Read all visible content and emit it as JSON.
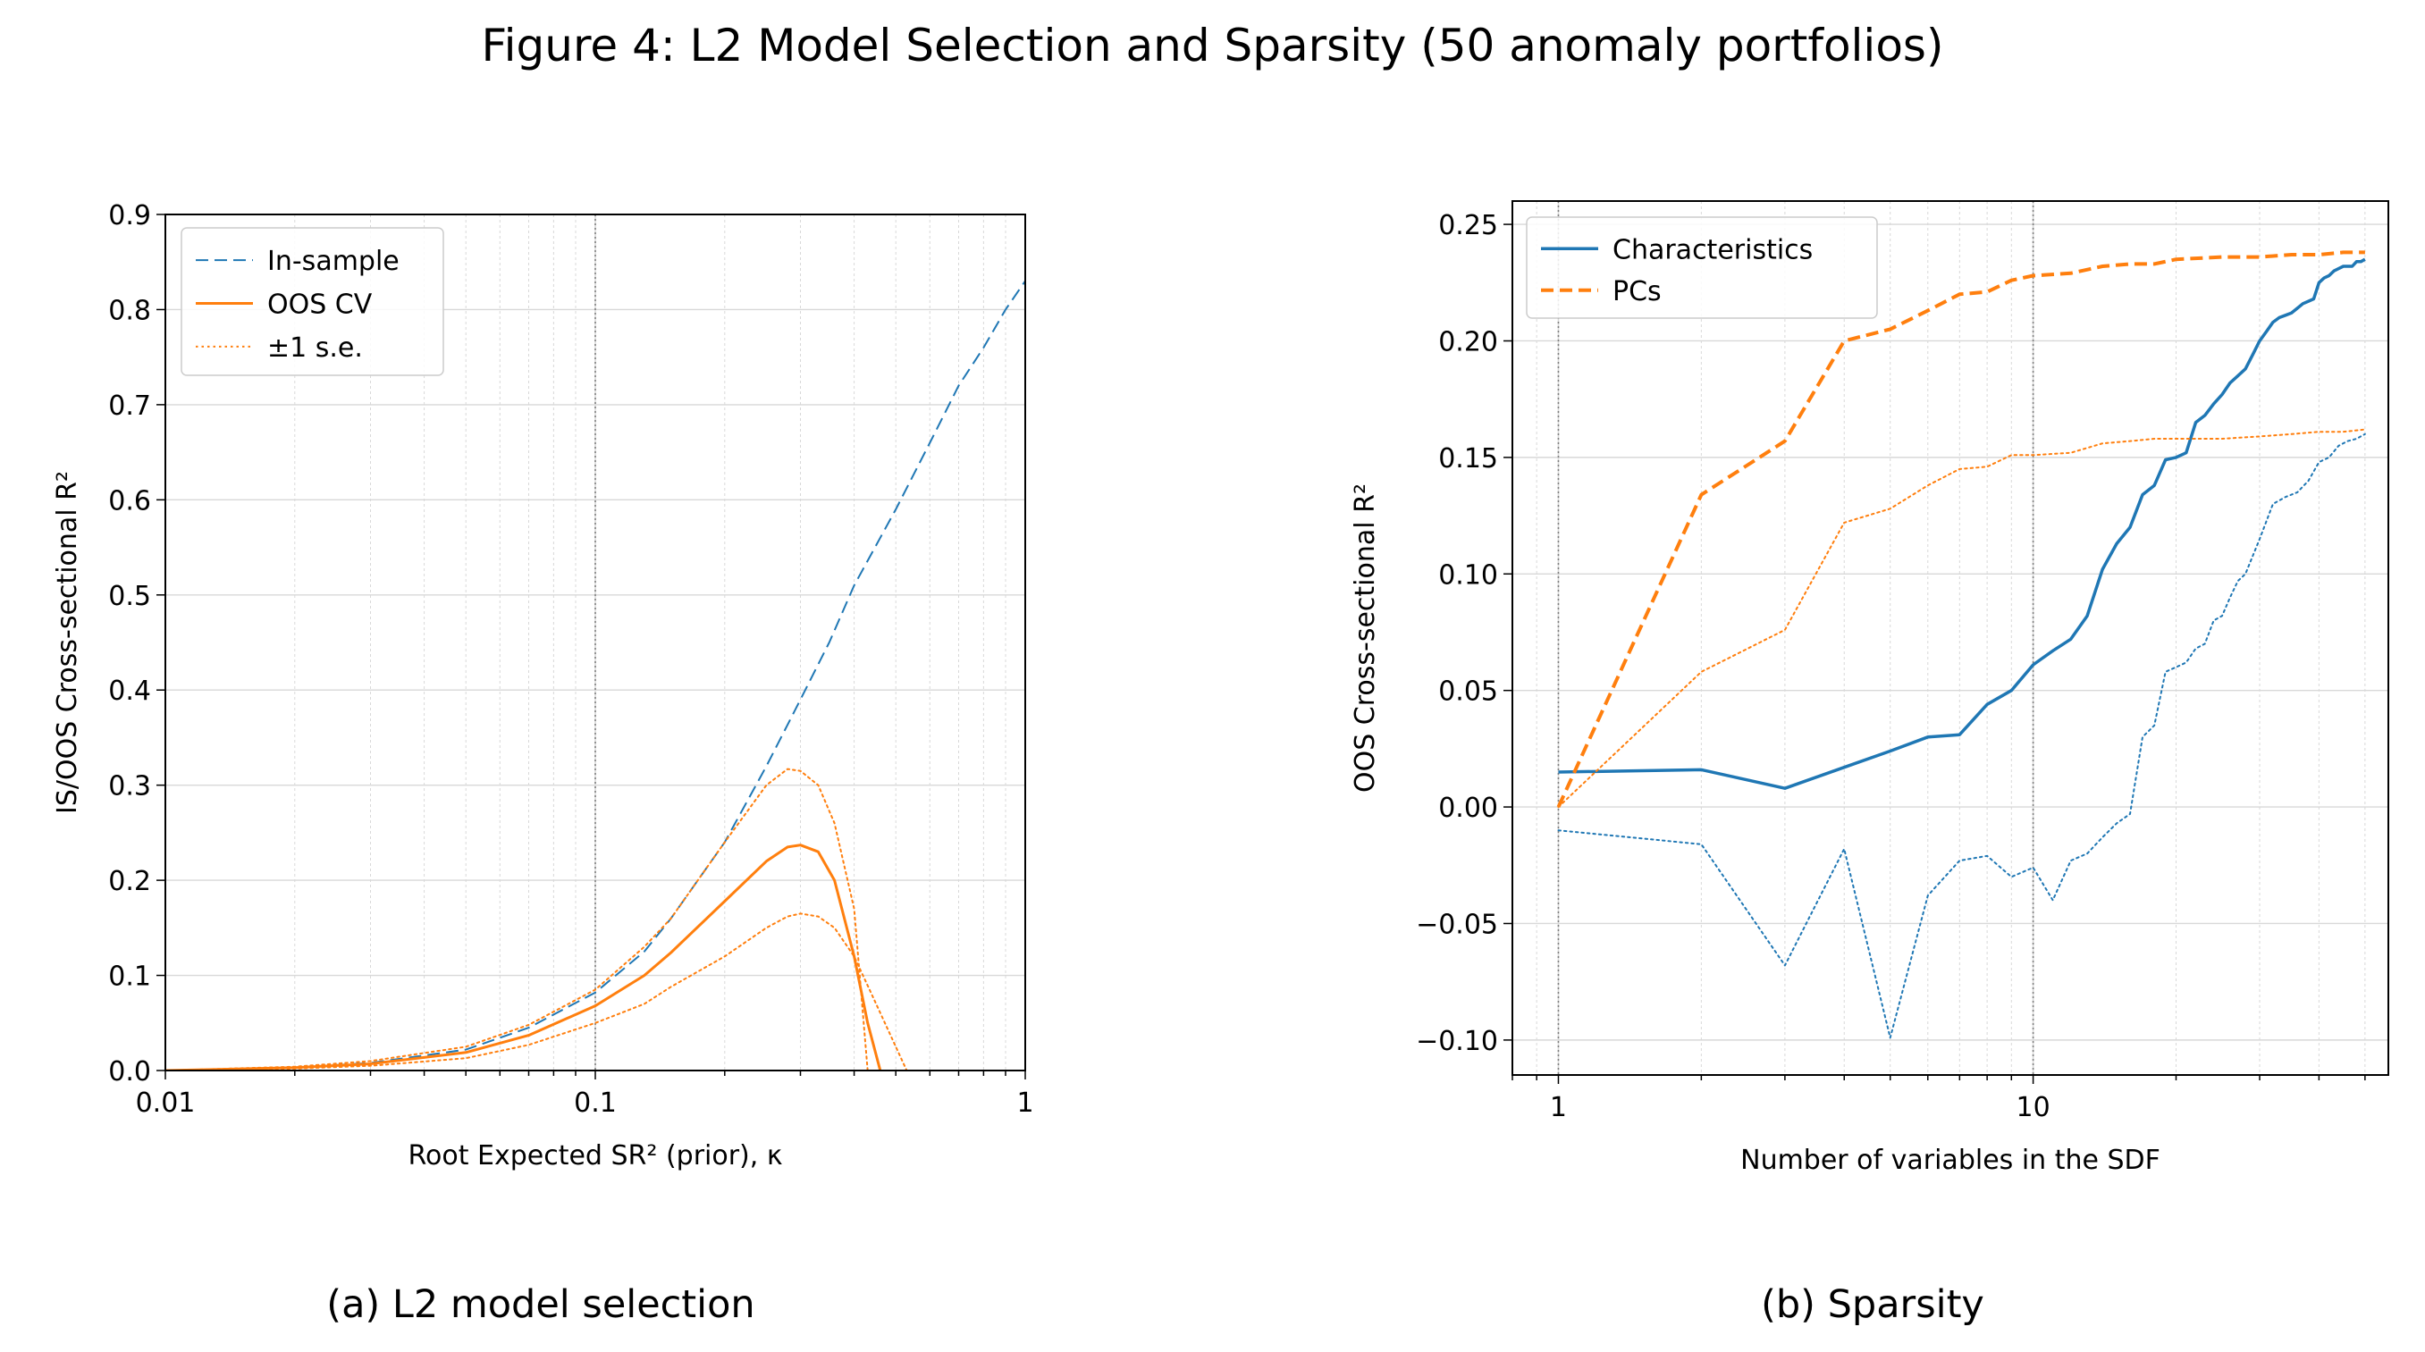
{
  "figure": {
    "title": "Figure 4: L2 Model Selection and Sparsity (50 anomaly portfolios)",
    "caption_a": "(a) L2 model selection",
    "caption_b": "(b) Sparsity"
  },
  "colors": {
    "blue": "#1f77b4",
    "orange": "#ff7f0e",
    "grid": "#d8d8d8",
    "vline": "#7f7f7f"
  },
  "chart_data": [
    {
      "type": "line",
      "panel": "a",
      "xlabel": "Root Expected SR² (prior), κ",
      "ylabel": "IS/OOS Cross-sectional R²",
      "xscale": "log",
      "xlim": [
        0.01,
        1
      ],
      "ylim": [
        0,
        0.9
      ],
      "xticks": [
        0.01,
        0.1,
        1
      ],
      "xtick_labels": [
        "0.01",
        "0.1",
        "1"
      ],
      "yticks": [
        0,
        0.1,
        0.2,
        0.3,
        0.4,
        0.5,
        0.6,
        0.7,
        0.8,
        0.9
      ],
      "ytick_labels": [
        "0.0",
        "0.1",
        "0.2",
        "0.3",
        "0.4",
        "0.5",
        "0.6",
        "0.7",
        "0.8",
        "0.9"
      ],
      "grid": true,
      "reference_vline": 0.1,
      "legend": "upper-left",
      "series": [
        {
          "name": "In-sample",
          "style": "dashed",
          "color": "#1f77b4",
          "width": 2,
          "x": [
            0.01,
            0.02,
            0.03,
            0.05,
            0.07,
            0.1,
            0.13,
            0.15,
            0.2,
            0.25,
            0.3,
            0.35,
            0.4,
            0.5,
            0.6,
            0.7,
            0.8,
            0.9,
            1.0
          ],
          "y": [
            0.0,
            0.003,
            0.008,
            0.022,
            0.045,
            0.082,
            0.125,
            0.16,
            0.24,
            0.32,
            0.39,
            0.45,
            0.51,
            0.59,
            0.66,
            0.72,
            0.76,
            0.8,
            0.83
          ]
        },
        {
          "name": "OOS CV",
          "style": "solid",
          "color": "#ff7f0e",
          "width": 3,
          "x": [
            0.01,
            0.02,
            0.03,
            0.05,
            0.07,
            0.1,
            0.13,
            0.15,
            0.2,
            0.25,
            0.28,
            0.3,
            0.33,
            0.36,
            0.4,
            0.43,
            0.46
          ],
          "y": [
            0.0,
            0.003,
            0.007,
            0.019,
            0.037,
            0.068,
            0.1,
            0.124,
            0.178,
            0.22,
            0.235,
            0.237,
            0.23,
            0.2,
            0.12,
            0.05,
            0.0
          ]
        },
        {
          "name": "±1 s.e.",
          "style": "dotted",
          "color": "#ff7f0e",
          "width": 2,
          "x": [
            0.01,
            0.02,
            0.03,
            0.05,
            0.07,
            0.1,
            0.13,
            0.15,
            0.2,
            0.25,
            0.28,
            0.3,
            0.33,
            0.36,
            0.4,
            0.43
          ],
          "y": [
            0.0,
            0.004,
            0.01,
            0.025,
            0.048,
            0.085,
            0.13,
            0.16,
            0.24,
            0.3,
            0.317,
            0.315,
            0.3,
            0.26,
            0.17,
            0.0
          ]
        },
        {
          "name": "",
          "style": "dotted",
          "color": "#ff7f0e",
          "width": 2,
          "x": [
            0.01,
            0.02,
            0.03,
            0.05,
            0.07,
            0.1,
            0.13,
            0.15,
            0.2,
            0.25,
            0.28,
            0.3,
            0.33,
            0.36,
            0.4,
            0.45,
            0.5,
            0.53
          ],
          "y": [
            0.0,
            0.002,
            0.005,
            0.013,
            0.027,
            0.05,
            0.07,
            0.088,
            0.12,
            0.15,
            0.162,
            0.165,
            0.162,
            0.15,
            0.12,
            0.07,
            0.025,
            0.0
          ]
        }
      ]
    },
    {
      "type": "line",
      "panel": "b",
      "xlabel": "Number of variables in the SDF",
      "ylabel": "OOS Cross-sectional R²",
      "xscale": "log",
      "xlim": [
        0.8,
        56
      ],
      "ylim": [
        -0.115,
        0.26
      ],
      "xticks": [
        1,
        10
      ],
      "xtick_labels": [
        "1",
        "10"
      ],
      "yticks": [
        -0.1,
        -0.05,
        0,
        0.05,
        0.1,
        0.15,
        0.2,
        0.25
      ],
      "ytick_labels": [
        "−0.10",
        "−0.05",
        "0.00",
        "0.05",
        "0.10",
        "0.15",
        "0.20",
        "0.25"
      ],
      "grid": true,
      "reference_vlines": [
        1,
        10
      ],
      "legend": "upper-left",
      "series": [
        {
          "name": "Characteristics",
          "style": "solid",
          "color": "#1f77b4",
          "width": 3.5,
          "x": [
            1,
            2,
            3,
            4,
            5,
            6,
            7,
            8,
            9,
            10,
            11,
            12,
            13,
            14,
            15,
            16,
            17,
            18,
            19,
            20,
            21,
            22,
            23,
            24,
            25,
            26,
            27,
            28,
            29,
            30,
            31,
            32,
            33,
            34,
            35,
            36,
            37,
            38,
            39,
            40,
            41,
            42,
            43,
            44,
            45,
            46,
            47,
            48,
            49,
            50
          ],
          "y": [
            0.015,
            0.016,
            0.008,
            0.017,
            0.024,
            0.03,
            0.031,
            0.044,
            0.05,
            0.061,
            0.067,
            0.072,
            0.082,
            0.102,
            0.113,
            0.12,
            0.134,
            0.138,
            0.149,
            0.15,
            0.152,
            0.165,
            0.168,
            0.173,
            0.177,
            0.182,
            0.185,
            0.188,
            0.194,
            0.2,
            0.204,
            0.208,
            0.21,
            0.211,
            0.212,
            0.214,
            0.216,
            0.217,
            0.218,
            0.225,
            0.227,
            0.228,
            0.23,
            0.231,
            0.232,
            0.232,
            0.232,
            0.234,
            0.234,
            0.235
          ]
        },
        {
          "name": "PCs",
          "style": "dashed",
          "color": "#ff7f0e",
          "width": 4,
          "x": [
            1,
            2,
            3,
            4,
            5,
            6,
            7,
            8,
            9,
            10,
            12,
            14,
            16,
            18,
            20,
            25,
            30,
            35,
            40,
            45,
            50
          ],
          "y": [
            0.0,
            0.134,
            0.157,
            0.2,
            0.205,
            0.213,
            0.22,
            0.221,
            0.226,
            0.228,
            0.229,
            0.232,
            0.233,
            0.233,
            0.235,
            0.236,
            0.236,
            0.237,
            0.237,
            0.238,
            0.238
          ]
        },
        {
          "name": "",
          "style": "dotted",
          "color": "#1f77b4",
          "width": 2,
          "x": [
            1,
            2,
            3,
            4,
            5,
            6,
            7,
            8,
            9,
            10,
            11,
            12,
            13,
            14,
            15,
            16,
            17,
            18,
            19,
            20,
            21,
            22,
            23,
            24,
            25,
            26,
            27,
            28,
            30,
            32,
            34,
            36,
            38,
            40,
            42,
            44,
            46,
            48,
            50
          ],
          "y": [
            -0.01,
            -0.016,
            -0.068,
            -0.018,
            -0.099,
            -0.038,
            -0.023,
            -0.021,
            -0.03,
            -0.026,
            -0.04,
            -0.023,
            -0.02,
            -0.013,
            -0.007,
            -0.003,
            0.03,
            0.035,
            0.058,
            0.06,
            0.062,
            0.068,
            0.07,
            0.08,
            0.082,
            0.09,
            0.097,
            0.1,
            0.115,
            0.13,
            0.133,
            0.135,
            0.14,
            0.148,
            0.15,
            0.155,
            0.157,
            0.158,
            0.16
          ]
        },
        {
          "name": "",
          "style": "dotted",
          "color": "#ff7f0e",
          "width": 2,
          "x": [
            1,
            2,
            3,
            4,
            5,
            6,
            7,
            8,
            9,
            10,
            12,
            14,
            16,
            18,
            20,
            25,
            30,
            35,
            40,
            45,
            50
          ],
          "y": [
            0.0,
            0.058,
            0.076,
            0.122,
            0.128,
            0.138,
            0.145,
            0.146,
            0.151,
            0.151,
            0.152,
            0.156,
            0.157,
            0.158,
            0.158,
            0.158,
            0.159,
            0.16,
            0.161,
            0.161,
            0.162
          ]
        }
      ]
    }
  ]
}
